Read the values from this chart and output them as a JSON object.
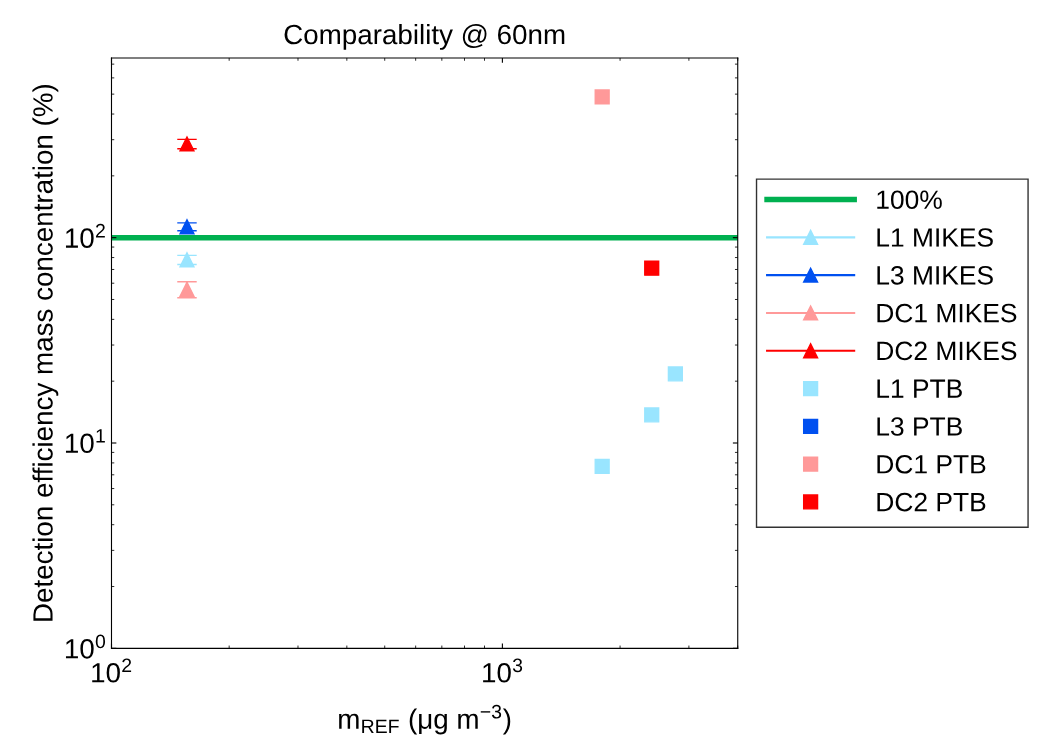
{
  "chart_data": {
    "type": "scatter",
    "title": "Comparability @ 60nm",
    "xlabel": "m$_{REF}$ (μg m$^{−3}$)",
    "ylabel": "Detection efficiency mass concentration (%)",
    "log": "xy",
    "xlim": [
      100,
      4000
    ],
    "ylim": [
      1,
      750
    ],
    "xticks": [
      {
        "value": 100,
        "label": "10$^{2}$"
      },
      {
        "value": 1000,
        "label": "10$^{3}$"
      }
    ],
    "yticks": [
      {
        "value": 1,
        "label": "10$^{0}$"
      },
      {
        "value": 10,
        "label": "10$^{1}$"
      },
      {
        "value": 100,
        "label": "10$^{2}$"
      }
    ],
    "grid": false,
    "legend": "right",
    "ref_lines": [
      {
        "axis": "y",
        "value": 100,
        "label": "100%",
        "color": "#00b050",
        "line_style": "solid"
      }
    ],
    "series": [
      {
        "name": "L1 MIKES",
        "color": "#99e5ff",
        "marker": "triangle",
        "x": [
          156
        ],
        "values": [
          78
        ],
        "errors": [
          4
        ]
      },
      {
        "name": "L3 MIKES",
        "color": "#0050f0",
        "marker": "triangle",
        "x": [
          156
        ],
        "values": [
          113
        ],
        "errors": [
          5
        ]
      },
      {
        "name": "DC1 MIKES",
        "color": "#ff9999",
        "marker": "triangle",
        "x": [
          156
        ],
        "values": [
          56
        ],
        "errors": [
          5
        ]
      },
      {
        "name": "DC2 MIKES",
        "color": "#ff0000",
        "marker": "triangle",
        "x": [
          156
        ],
        "values": [
          286
        ],
        "errors": [
          15
        ]
      },
      {
        "name": "L1 PTB",
        "color": "#99e5ff",
        "marker": "square",
        "x": [
          1800,
          2410,
          2770
        ],
        "values": [
          7.7,
          13.7,
          21.7
        ]
      },
      {
        "name": "L3 PTB",
        "color": "#0050f0",
        "marker": "square"
      },
      {
        "name": "DC1 PTB",
        "color": "#ff9999",
        "marker": "square",
        "x": [
          1800
        ],
        "values": [
          485
        ]
      },
      {
        "name": "DC2 PTB",
        "color": "#ff0000",
        "marker": "square",
        "x": [
          2410
        ],
        "values": [
          71
        ]
      }
    ]
  }
}
